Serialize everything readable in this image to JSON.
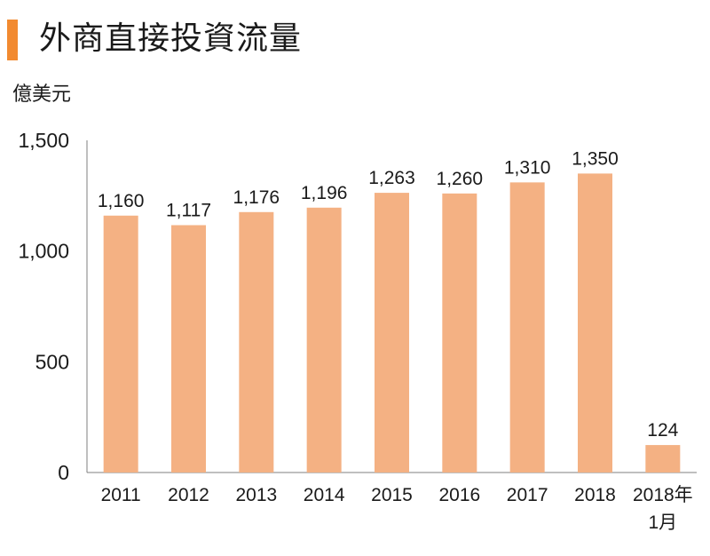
{
  "header": {
    "title": "外商直接投資流量",
    "unit": "億美元",
    "accent_color": "#f28a30"
  },
  "chart_data": {
    "type": "bar",
    "title": "外商直接投資流量",
    "ylabel": "億美元",
    "xlabel": "",
    "ylim": [
      0,
      1500
    ],
    "yticks": [
      0,
      500,
      1000,
      1500
    ],
    "ytick_labels": [
      "0",
      "500",
      "1,000",
      "1,500"
    ],
    "categories": [
      "2011",
      "2012",
      "2013",
      "2014",
      "2015",
      "2016",
      "2017",
      "2018",
      "2018年\n1月"
    ],
    "values": [
      1160,
      1117,
      1176,
      1196,
      1263,
      1260,
      1310,
      1350,
      124
    ],
    "value_labels": [
      "1,160",
      "1,117",
      "1,176",
      "1,196",
      "1,263",
      "1,260",
      "1,310",
      "1,350",
      "124"
    ],
    "bar_color": "#f4b183",
    "grid": false,
    "legend": "none"
  }
}
